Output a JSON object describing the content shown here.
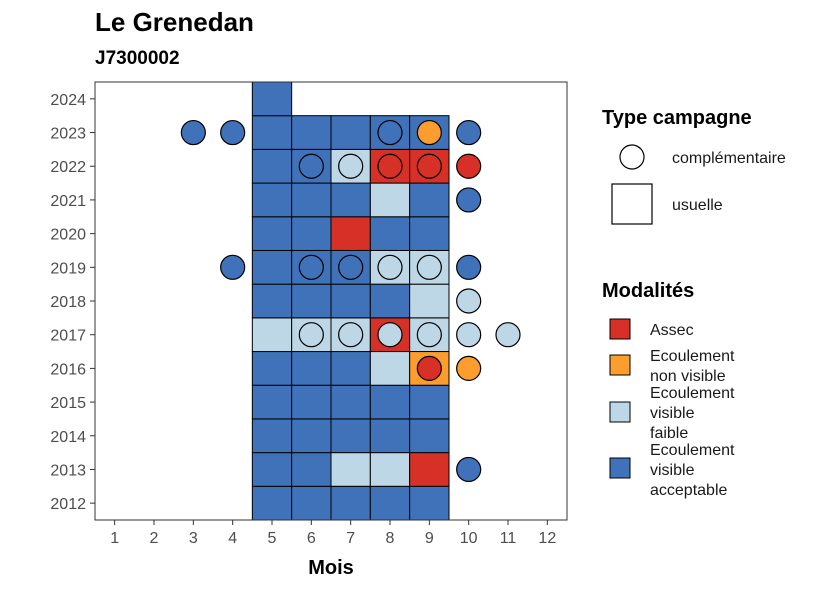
{
  "chart_data": {
    "type": "heatmap",
    "title": "Le Grenedan",
    "subtitle": "J7300002",
    "xlabel": "Mois",
    "ylabel": "",
    "x_ticks": [
      "1",
      "2",
      "3",
      "4",
      "5",
      "6",
      "7",
      "8",
      "9",
      "10",
      "11",
      "12"
    ],
    "y_ticks": [
      "2012",
      "2013",
      "2014",
      "2015",
      "2016",
      "2017",
      "2018",
      "2019",
      "2020",
      "2021",
      "2022",
      "2023",
      "2024"
    ],
    "xlim": [
      0.5,
      12.5
    ],
    "ylim": [
      2011.5,
      2024.5
    ],
    "grid": false,
    "legend_position": "right",
    "legends": {
      "type_campagne": {
        "title": "Type campagne",
        "items": [
          {
            "key": "complementaire",
            "label": "complémentaire",
            "shape": "circle"
          },
          {
            "key": "usuelle",
            "label": "usuelle",
            "shape": "square"
          }
        ]
      },
      "modalites": {
        "title": "Modalités",
        "items": [
          {
            "key": "assec",
            "lines": [
              "Assec"
            ],
            "color": "#d73027"
          },
          {
            "key": "nonvisible",
            "lines": [
              "Ecoulement",
              "non visible"
            ],
            "color": "#fc9d2d"
          },
          {
            "key": "faible",
            "lines": [
              "Ecoulement",
              "visible",
              "faible"
            ],
            "color": "#bdd7e7"
          },
          {
            "key": "acceptable",
            "lines": [
              "Ecoulement",
              "visible",
              "acceptable"
            ],
            "color": "#3f72b9"
          }
        ]
      }
    },
    "usuelle": {
      "years": [
        2012,
        2013,
        2014,
        2015,
        2016,
        2017,
        2018,
        2019,
        2020,
        2021,
        2022,
        2023
      ],
      "months": [
        5,
        6,
        7,
        8,
        9
      ],
      "cells": [
        [
          "acceptable",
          "acceptable",
          "acceptable",
          "acceptable",
          "acceptable"
        ],
        [
          "acceptable",
          "acceptable",
          "faible",
          "faible",
          "assec"
        ],
        [
          "acceptable",
          "acceptable",
          "acceptable",
          "acceptable",
          "acceptable"
        ],
        [
          "acceptable",
          "acceptable",
          "acceptable",
          "acceptable",
          "acceptable"
        ],
        [
          "acceptable",
          "acceptable",
          "acceptable",
          "faible",
          "nonvisible"
        ],
        [
          "faible",
          "faible",
          "faible",
          "assec",
          "faible"
        ],
        [
          "acceptable",
          "acceptable",
          "acceptable",
          "acceptable",
          "faible"
        ],
        [
          "acceptable",
          "acceptable",
          "acceptable",
          "faible",
          "faible"
        ],
        [
          "acceptable",
          "acceptable",
          "assec",
          "acceptable",
          "acceptable"
        ],
        [
          "acceptable",
          "acceptable",
          "acceptable",
          "faible",
          "acceptable"
        ],
        [
          "acceptable",
          "acceptable",
          "faible",
          "assec",
          "assec"
        ],
        [
          "acceptable",
          "acceptable",
          "acceptable",
          "acceptable",
          "acceptable"
        ]
      ],
      "extra": [
        {
          "year": 2024,
          "month": 5,
          "value": "acceptable"
        }
      ]
    },
    "complementaire": [
      {
        "year": 2023,
        "month": 3,
        "value": "acceptable"
      },
      {
        "year": 2023,
        "month": 4,
        "value": "acceptable"
      },
      {
        "year": 2023,
        "month": 8,
        "value": "acceptable"
      },
      {
        "year": 2023,
        "month": 9,
        "value": "nonvisible"
      },
      {
        "year": 2023,
        "month": 10,
        "value": "acceptable"
      },
      {
        "year": 2022,
        "month": 6,
        "value": "acceptable"
      },
      {
        "year": 2022,
        "month": 7,
        "value": "faible"
      },
      {
        "year": 2022,
        "month": 8,
        "value": "assec"
      },
      {
        "year": 2022,
        "month": 9,
        "value": "assec"
      },
      {
        "year": 2022,
        "month": 10,
        "value": "assec"
      },
      {
        "year": 2021,
        "month": 10,
        "value": "acceptable"
      },
      {
        "year": 2019,
        "month": 4,
        "value": "acceptable"
      },
      {
        "year": 2019,
        "month": 6,
        "value": "acceptable"
      },
      {
        "year": 2019,
        "month": 7,
        "value": "acceptable"
      },
      {
        "year": 2019,
        "month": 8,
        "value": "faible"
      },
      {
        "year": 2019,
        "month": 9,
        "value": "faible"
      },
      {
        "year": 2019,
        "month": 10,
        "value": "acceptable"
      },
      {
        "year": 2018,
        "month": 10,
        "value": "faible"
      },
      {
        "year": 2017,
        "month": 6,
        "value": "faible"
      },
      {
        "year": 2017,
        "month": 7,
        "value": "faible"
      },
      {
        "year": 2017,
        "month": 8,
        "value": "faible"
      },
      {
        "year": 2017,
        "month": 9,
        "value": "faible"
      },
      {
        "year": 2017,
        "month": 10,
        "value": "faible"
      },
      {
        "year": 2017,
        "month": 11,
        "value": "faible"
      },
      {
        "year": 2016,
        "month": 9,
        "value": "assec"
      },
      {
        "year": 2016,
        "month": 10,
        "value": "nonvisible"
      },
      {
        "year": 2013,
        "month": 10,
        "value": "acceptable"
      }
    ]
  }
}
